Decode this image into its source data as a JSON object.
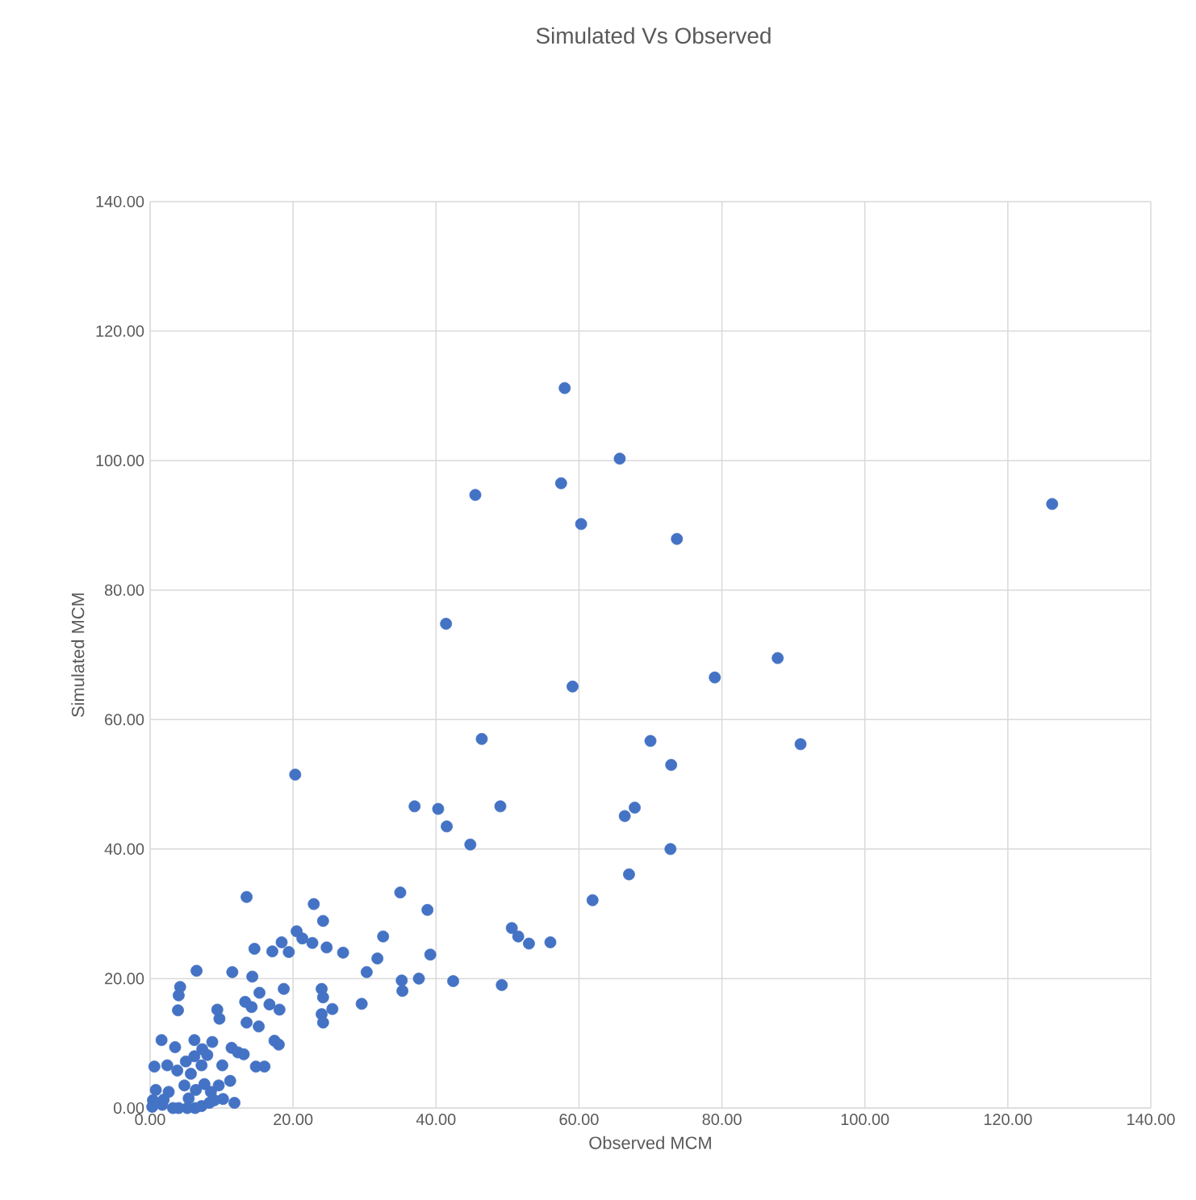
{
  "chart_data": {
    "type": "scatter",
    "title": "Simulated Vs Observed",
    "xlabel": "Observed MCM",
    "ylabel": "Simulated MCM",
    "xlim": [
      0,
      140
    ],
    "ylim": [
      0,
      140
    ],
    "xticks": [
      {
        "value": 0,
        "label": "0.00"
      },
      {
        "value": 20,
        "label": "20.00"
      },
      {
        "value": 40,
        "label": "40.00"
      },
      {
        "value": 60,
        "label": "60.00"
      },
      {
        "value": 80,
        "label": "80.00"
      },
      {
        "value": 100,
        "label": "100.00"
      },
      {
        "value": 120,
        "label": "120.00"
      },
      {
        "value": 140,
        "label": "140.00"
      }
    ],
    "yticks": [
      {
        "value": 0,
        "label": "0.00"
      },
      {
        "value": 20,
        "label": "20.00"
      },
      {
        "value": 40,
        "label": "40.00"
      },
      {
        "value": 60,
        "label": "60.00"
      },
      {
        "value": 80,
        "label": "80.00"
      },
      {
        "value": 100,
        "label": "100.00"
      },
      {
        "value": 120,
        "label": "120.00"
      },
      {
        "value": 140,
        "label": "140.00"
      }
    ],
    "grid": true,
    "marker": "circle",
    "color": "#4472c4",
    "x": [
      58,
      57.5,
      45.5,
      65.7,
      60.3,
      73.7,
      126.2,
      41.4,
      59.1,
      79,
      87.8,
      91,
      46.4,
      70,
      72.9,
      20.3,
      37,
      40.3,
      49,
      41.5,
      44.8,
      67.8,
      66.4,
      72.8,
      67,
      61.9,
      13.5,
      35,
      22.9,
      38.8,
      32.6,
      50.6,
      51.5,
      53,
      56,
      31.8,
      39.2,
      30.3,
      37.6,
      42.4,
      49.2,
      35.2,
      35.3,
      29.6,
      25.5,
      24,
      24.2,
      24.2,
      24,
      27,
      24.7,
      24.2,
      22.7,
      21.3,
      20.5,
      19.4,
      18.4,
      17.1,
      14.6,
      14.3,
      11.5,
      6.5,
      4.2,
      4,
      3.9,
      13.3,
      14.2,
      15.3,
      16.7,
      18.1,
      18.7,
      13.5,
      9.4,
      9.7,
      15.2,
      17.4,
      18,
      14.8,
      16,
      10.1,
      11.4,
      12.3,
      13.1,
      11.2,
      8.7,
      6.2,
      1.6,
      0.6,
      2.4,
      3.5,
      3.8,
      5,
      6.2,
      7.3,
      8,
      7.2,
      5.7,
      4.8,
      5.4,
      6.4,
      7.6,
      8.5,
      9.6,
      10.2,
      11.8,
      8.3,
      7.2,
      6.3,
      5.2,
      4,
      3.2,
      1.7,
      0.4,
      0.8,
      1.9,
      2.6,
      0.3,
      9
    ],
    "values": [
      111.2,
      96.5,
      94.7,
      100.3,
      90.2,
      87.9,
      93.3,
      74.8,
      65.1,
      66.5,
      69.5,
      56.2,
      57,
      56.7,
      53,
      51.5,
      46.6,
      46.2,
      46.6,
      43.5,
      40.7,
      46.4,
      45.1,
      40,
      36.1,
      32.1,
      32.6,
      33.3,
      31.5,
      30.6,
      26.5,
      27.8,
      26.5,
      25.4,
      25.6,
      23.1,
      23.7,
      21,
      20,
      19.6,
      19,
      19.7,
      18.1,
      16.1,
      15.3,
      14.5,
      13.2,
      17.1,
      18.4,
      24,
      24.8,
      28.9,
      25.5,
      26.2,
      27.3,
      24.1,
      25.6,
      24.2,
      24.6,
      20.3,
      21,
      21.2,
      18.7,
      17.4,
      15.1,
      16.4,
      15.6,
      17.8,
      16,
      15.2,
      18.4,
      13.2,
      15.2,
      13.8,
      12.6,
      10.4,
      9.8,
      6.4,
      6.4,
      6.6,
      9.3,
      8.6,
      8.3,
      4.2,
      10.2,
      10.5,
      10.5,
      6.4,
      6.6,
      9.4,
      5.8,
      7.2,
      8,
      9.1,
      8.2,
      6.6,
      5.3,
      3.5,
      1.5,
      2.8,
      3.7,
      2.5,
      3.5,
      1.4,
      0.8,
      0.8,
      0.3,
      0,
      0,
      0,
      0,
      0.5,
      1.2,
      2.8,
      1.3,
      2.5,
      0.2,
      1.2
    ]
  }
}
